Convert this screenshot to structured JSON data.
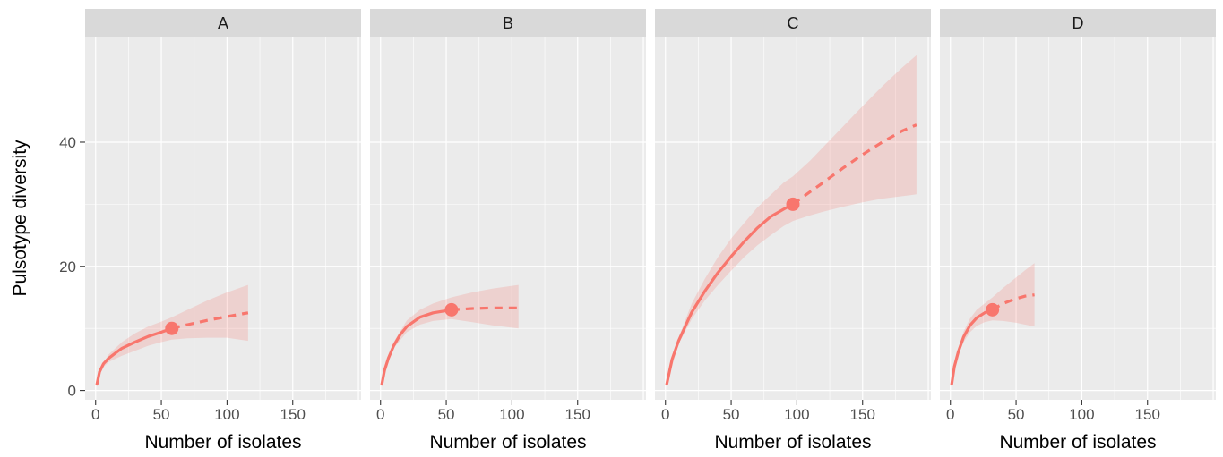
{
  "chart_data": {
    "type": "line",
    "ylabel": "Pulsotype diversity",
    "y_ticks": [
      0,
      20,
      40
    ],
    "ylim": [
      -1.5,
      57
    ],
    "grid": true,
    "legend": "none",
    "colors": {
      "line": "#f8766d",
      "band": "#f8766d",
      "panel_bg": "#ebebeb",
      "strip_bg": "#d9d9d9",
      "grid": "#ffffff"
    },
    "panels": [
      {
        "label": "A",
        "xlabel": "Number of isolates",
        "x_ticks": [
          0,
          50,
          100,
          150
        ],
        "xlim": [
          -8,
          202
        ],
        "observed": {
          "x": 58,
          "y": 10
        },
        "interpolated": {
          "x": [
            1,
            3,
            6,
            10,
            15,
            20,
            30,
            40,
            50,
            58
          ],
          "y": [
            1,
            3,
            4.3,
            5.2,
            6,
            6.8,
            7.8,
            8.7,
            9.4,
            10
          ]
        },
        "extrapolated": {
          "x": [
            58,
            70,
            85,
            100,
            116
          ],
          "y": [
            10,
            10.6,
            11.3,
            11.9,
            12.5
          ]
        },
        "ci_lower": {
          "x": [
            1,
            5,
            10,
            20,
            30,
            40,
            50,
            58,
            70,
            85,
            100,
            116
          ],
          "y": [
            1,
            3.6,
            4.6,
            5.6,
            6.4,
            7.2,
            7.8,
            8.2,
            8.4,
            8.5,
            8.5,
            8
          ]
        },
        "ci_upper": {
          "x": [
            1,
            5,
            10,
            20,
            30,
            40,
            50,
            58,
            70,
            85,
            100,
            116
          ],
          "y": [
            1,
            4.2,
            5.8,
            7.8,
            9.2,
            10.3,
            11.1,
            11.8,
            13,
            14.5,
            15.8,
            17
          ]
        }
      },
      {
        "label": "B",
        "xlabel": "Number of isolates",
        "x_ticks": [
          0,
          50,
          100,
          150
        ],
        "xlim": [
          -8,
          202
        ],
        "observed": {
          "x": 54,
          "y": 13
        },
        "interpolated": {
          "x": [
            1,
            3,
            6,
            10,
            15,
            20,
            30,
            40,
            54
          ],
          "y": [
            1,
            3.2,
            5.2,
            7.2,
            9,
            10.3,
            11.8,
            12.5,
            13
          ]
        },
        "extrapolated": {
          "x": [
            54,
            70,
            85,
            105
          ],
          "y": [
            13,
            13.2,
            13.3,
            13.3
          ]
        },
        "ci_lower": {
          "x": [
            1,
            5,
            10,
            20,
            30,
            40,
            54,
            70,
            85,
            105
          ],
          "y": [
            1,
            4.4,
            6.8,
            9.4,
            10.6,
            11.2,
            11.5,
            11,
            10.5,
            10
          ]
        },
        "ci_upper": {
          "x": [
            1,
            5,
            10,
            20,
            30,
            40,
            54,
            70,
            85,
            105
          ],
          "y": [
            1,
            4.9,
            7.8,
            11.3,
            13,
            14,
            15,
            15.8,
            16.4,
            17
          ]
        }
      },
      {
        "label": "C",
        "xlabel": "Number of isolates",
        "x_ticks": [
          0,
          50,
          100,
          150
        ],
        "xlim": [
          -8,
          202
        ],
        "observed": {
          "x": 97,
          "y": 30
        },
        "interpolated": {
          "x": [
            1,
            5,
            10,
            20,
            30,
            40,
            50,
            60,
            70,
            80,
            90,
            97
          ],
          "y": [
            1,
            5,
            8,
            12.6,
            16,
            19,
            21.6,
            24,
            26.2,
            28,
            29.2,
            30
          ]
        },
        "extrapolated": {
          "x": [
            97,
            110,
            120,
            135,
            150,
            165,
            180,
            191
          ],
          "y": [
            30,
            32,
            33.5,
            35.8,
            38,
            40,
            41.8,
            42.8
          ]
        },
        "ci_lower": {
          "x": [
            1,
            10,
            20,
            30,
            40,
            50,
            60,
            70,
            80,
            90,
            97,
            110,
            120,
            135,
            150,
            165,
            180,
            191
          ],
          "y": [
            1,
            7.5,
            11.5,
            14.5,
            17,
            19.3,
            21.5,
            23.4,
            25,
            26.5,
            27.3,
            28.2,
            28.8,
            29.6,
            30.3,
            30.9,
            31.3,
            31.6
          ]
        },
        "ci_upper": {
          "x": [
            1,
            10,
            20,
            30,
            40,
            50,
            60,
            70,
            80,
            90,
            97,
            110,
            120,
            135,
            150,
            165,
            180,
            191
          ],
          "y": [
            1,
            8.5,
            14,
            18,
            21.5,
            24.5,
            27,
            29.5,
            31.5,
            33.5,
            34.5,
            37,
            39.2,
            42.5,
            45.8,
            49,
            52,
            54
          ]
        }
      },
      {
        "label": "D",
        "xlabel": "Number of isolates",
        "x_ticks": [
          0,
          50,
          100,
          150
        ],
        "xlim": [
          -8,
          202
        ],
        "observed": {
          "x": 32,
          "y": 13
        },
        "interpolated": {
          "x": [
            1,
            3,
            6,
            10,
            15,
            20,
            26,
            32
          ],
          "y": [
            1,
            3.8,
            6.2,
            8.6,
            10.5,
            11.7,
            12.5,
            13
          ]
        },
        "extrapolated": {
          "x": [
            32,
            40,
            50,
            57,
            64
          ],
          "y": [
            13,
            14,
            14.8,
            15.2,
            15.4
          ]
        },
        "ci_lower": {
          "x": [
            1,
            5,
            10,
            15,
            20,
            26,
            32,
            40,
            50,
            57,
            64
          ],
          "y": [
            1,
            5.3,
            7.8,
            9.4,
            10.4,
            11,
            11.3,
            11.2,
            10.9,
            10.6,
            10.3
          ]
        },
        "ci_upper": {
          "x": [
            1,
            5,
            10,
            15,
            20,
            26,
            32,
            40,
            50,
            57,
            64
          ],
          "y": [
            1,
            5.8,
            9.5,
            11.6,
            13,
            14,
            15,
            16.5,
            18.2,
            19.4,
            20.5
          ]
        }
      }
    ]
  }
}
